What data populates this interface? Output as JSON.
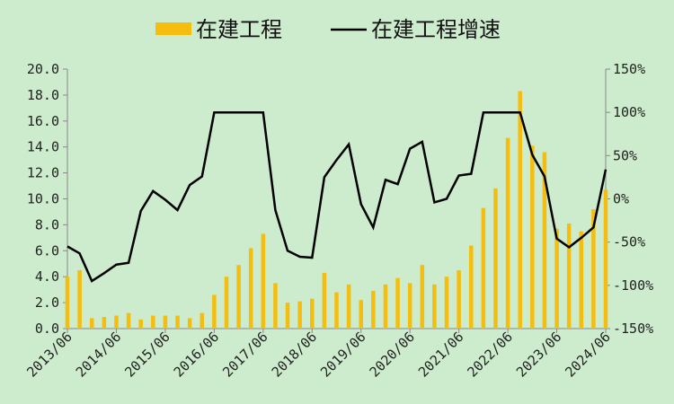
{
  "chart_data": {
    "type": "bar+line",
    "colors": {
      "background": "#cdeccd",
      "bar": "#f5bd0d",
      "line": "#000000",
      "axis": "#888888"
    },
    "legend": {
      "position": "top",
      "bar_label": "在建工程",
      "line_label": "在建工程增速"
    },
    "x_tick_labels": [
      "2013/06",
      "2014/06",
      "2015/06",
      "2016/06",
      "2017/06",
      "2018/06",
      "2019/06",
      "2020/06",
      "2021/06",
      "2022/06",
      "2023/06",
      "2024/06"
    ],
    "y_left": {
      "ylim": [
        0,
        20
      ],
      "ticks": [
        "0.0",
        "2.0",
        "4.0",
        "6.0",
        "8.0",
        "10.0",
        "12.0",
        "14.0",
        "16.0",
        "18.0",
        "20.0"
      ]
    },
    "y_right": {
      "ylim": [
        -150,
        150
      ],
      "ticks": [
        "-150%",
        "-100%",
        "-50%",
        "0%",
        "50%",
        "100%",
        "150%"
      ]
    },
    "quarters": [
      "2013/06",
      "2013/09",
      "2013/12",
      "2014/03",
      "2014/06",
      "2014/09",
      "2014/12",
      "2015/03",
      "2015/06",
      "2015/09",
      "2015/12",
      "2016/03",
      "2016/06",
      "2016/09",
      "2016/12",
      "2017/03",
      "2017/06",
      "2017/09",
      "2017/12",
      "2018/03",
      "2018/06",
      "2018/09",
      "2018/12",
      "2019/03",
      "2019/06",
      "2019/09",
      "2019/12",
      "2020/03",
      "2020/06",
      "2020/09",
      "2020/12",
      "2021/03",
      "2021/06",
      "2021/09",
      "2021/12",
      "2022/03",
      "2022/06",
      "2022/09",
      "2022/12",
      "2023/03",
      "2023/06",
      "2023/09",
      "2023/12",
      "2024/03",
      "2024/06"
    ],
    "series": [
      {
        "name": "在建工程",
        "axis": "left",
        "values": [
          4.0,
          4.5,
          0.8,
          0.9,
          1.0,
          1.2,
          0.7,
          1.0,
          1.0,
          1.0,
          0.8,
          1.2,
          2.6,
          4.0,
          4.9,
          6.2,
          7.3,
          3.5,
          2.0,
          2.1,
          2.3,
          4.3,
          2.8,
          3.4,
          2.2,
          2.9,
          3.4,
          3.9,
          3.5,
          4.9,
          3.4,
          4.0,
          4.5,
          6.4,
          9.3,
          10.8,
          14.7,
          18.3,
          14.1,
          13.6,
          7.7,
          8.1,
          7.5,
          9.2,
          10.7
        ]
      },
      {
        "name": "在建工程增速",
        "axis": "right",
        "values": [
          -55,
          -63,
          -95,
          -86,
          -76,
          -74,
          -14,
          9,
          -1,
          -13,
          16,
          26,
          100,
          100,
          100,
          100,
          100,
          -13,
          -60,
          -67,
          -68,
          25,
          45,
          63,
          -6,
          -33,
          22,
          17,
          58,
          66,
          -4,
          0,
          27,
          29,
          100,
          100,
          100,
          100,
          51,
          26,
          -46,
          -56,
          -45,
          -33,
          34
        ]
      }
    ]
  }
}
